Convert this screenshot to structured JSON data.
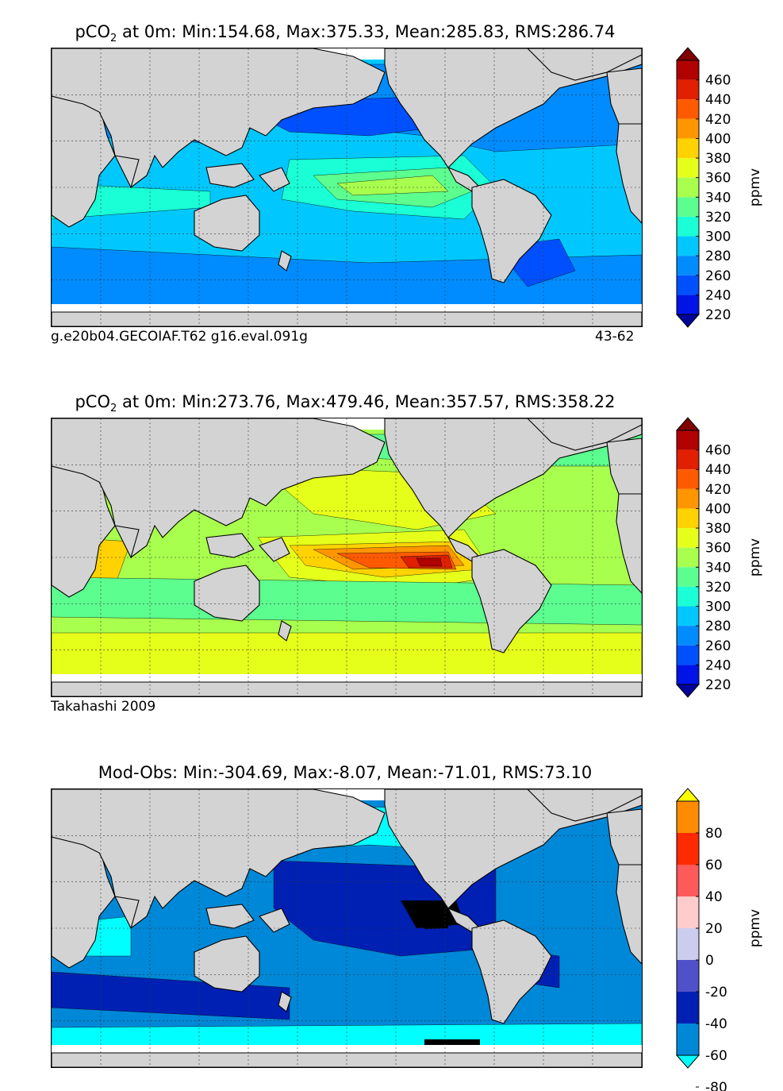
{
  "panels": [
    {
      "title_prefix": "pCO",
      "title_sub": "2",
      "title_suffix": " at 0m: Min:154.68, Max:375.33, Mean:285.83, RMS:286.74",
      "caption_left": "g.e20b04.GECOIAF.T62 g16.eval.091g",
      "caption_right": "43-62",
      "colorbar": {
        "unit": "ppmv",
        "ticks": [
          "460",
          "440",
          "420",
          "400",
          "380",
          "360",
          "340",
          "320",
          "300",
          "280",
          "260",
          "240",
          "220"
        ],
        "colors": [
          "#800000",
          "#b00000",
          "#e02000",
          "#ff5a00",
          "#ff9600",
          "#ffd200",
          "#e6ff1a",
          "#a8ff4d",
          "#5cff8f",
          "#1affd6",
          "#00c8ff",
          "#008cff",
          "#0050ff",
          "#0014e6",
          "#00009a"
        ]
      },
      "dominant_field": "blue"
    },
    {
      "title_prefix": "pCO",
      "title_sub": "2",
      "title_suffix": " at 0m: Min:273.76, Max:479.46, Mean:357.57, RMS:358.22",
      "caption_left": "Takahashi 2009",
      "caption_right": "",
      "colorbar": {
        "unit": "ppmv",
        "ticks": [
          "460",
          "440",
          "420",
          "400",
          "380",
          "360",
          "340",
          "320",
          "300",
          "280",
          "260",
          "240",
          "220"
        ],
        "colors": [
          "#800000",
          "#b00000",
          "#e02000",
          "#ff5a00",
          "#ff9600",
          "#ffd200",
          "#e6ff1a",
          "#a8ff4d",
          "#5cff8f",
          "#1affd6",
          "#00c8ff",
          "#008cff",
          "#0050ff",
          "#0014e6",
          "#00009a"
        ]
      },
      "dominant_field": "yellow-green"
    },
    {
      "title_prefix": "Mod-Obs: Min:-304.69, Max:-8.07, Mean:-71.01, RMS:73.10",
      "title_sub": "",
      "title_suffix": "",
      "caption_left": "",
      "caption_right": "",
      "colorbar": {
        "unit": "ppmv",
        "ticks": [
          "80",
          "60",
          "40",
          "20",
          "0",
          "-20",
          "-40",
          "-60",
          "-80"
        ],
        "colors": [
          "#ffff00",
          "#ff8c00",
          "#ff2a00",
          "#ff5a5a",
          "#ffcccc",
          "#ccccee",
          "#5050c8",
          "#0020b4",
          "#0088d8",
          "#00ffff"
        ]
      },
      "dominant_field": "diff"
    }
  ],
  "map_colors": {
    "land": "#d3d3d3",
    "coast": "#000000",
    "grid": "#333333",
    "ice_gap": "#ffffff"
  }
}
